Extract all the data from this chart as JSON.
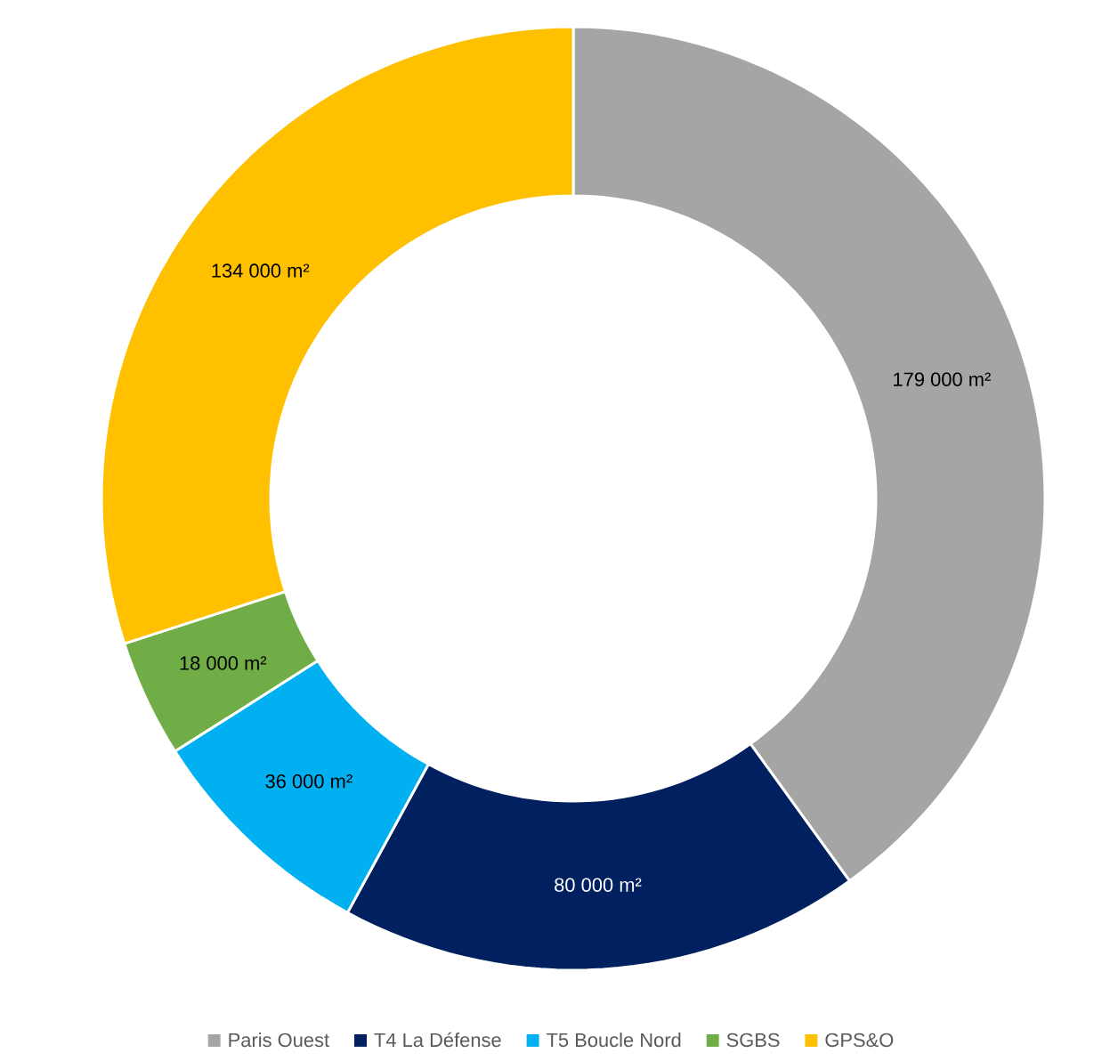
{
  "chart_data": {
    "type": "donut",
    "categories": [
      "Paris Ouest",
      "T4 La Défense",
      "T5 Boucle Nord",
      "SGBS",
      "GPS&O"
    ],
    "values": [
      179000,
      80000,
      36000,
      18000,
      134000
    ],
    "value_labels": [
      "179 000 m²",
      "80 000 m²",
      "36 000 m²",
      "18 000 m²",
      "134 000 m²"
    ],
    "colors": [
      "#a5a5a5",
      "#002060",
      "#00b0f0",
      "#70ad47",
      "#ffc000"
    ],
    "legend": "bottom"
  }
}
